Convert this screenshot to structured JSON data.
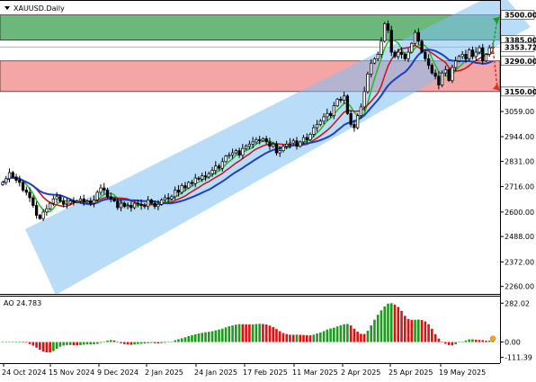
{
  "chart_data": {
    "type": "candlestick",
    "symbol_label": "XAUUSD.Daily",
    "x_ticks": [
      "24 Oct 2024",
      "15 Nov 2024",
      "9 Dec 2024",
      "2 Jan 2025",
      "24 Jan 2025",
      "17 Feb 2025",
      "11 Mar 2025",
      "2 Apr 2025",
      "25 Apr 2025",
      "19 May 2025"
    ],
    "y_ticks": [
      3500.0,
      3385.0,
      3353.72,
      3290.0,
      3150.0,
      3059.0,
      2944.0,
      2831.0,
      2716.0,
      2600.0,
      2488.0,
      2372.0,
      2260.0
    ],
    "ylim": [
      2230,
      3560
    ],
    "current_price": 3353.72,
    "zones": [
      {
        "name": "resistance",
        "from": 3385.0,
        "to": 3500.0,
        "color": "#2e9a44"
      },
      {
        "name": "support",
        "from": 3150.0,
        "to": 3290.0,
        "color": "#f08080"
      }
    ],
    "channel": {
      "color": "#7fbff2"
    },
    "forecast_arrows": [
      {
        "direction": "up",
        "color": "#1e9b2e"
      },
      {
        "direction": "down",
        "color": "#e03020"
      }
    ],
    "ma_colors": [
      "#22bb22",
      "#cc1111",
      "#1f3fbf"
    ],
    "closes": [
      2735,
      2752,
      2780,
      2760,
      2745,
      2735,
      2700,
      2690,
      2665,
      2630,
      2585,
      2570,
      2600,
      2615,
      2640,
      2660,
      2670,
      2650,
      2635,
      2640,
      2650,
      2645,
      2650,
      2660,
      2645,
      2650,
      2640,
      2655,
      2690,
      2710,
      2700,
      2670,
      2660,
      2650,
      2620,
      2640,
      2625,
      2630,
      2620,
      2640,
      2635,
      2630,
      2625,
      2655,
      2640,
      2625,
      2635,
      2655,
      2665,
      2660,
      2670,
      2700,
      2690,
      2720,
      2710,
      2735,
      2730,
      2755,
      2750,
      2765,
      2760,
      2775,
      2790,
      2810,
      2800,
      2830,
      2855,
      2860,
      2870,
      2880,
      2860,
      2890,
      2900,
      2910,
      2920,
      2930,
      2925,
      2935,
      2920,
      2900,
      2910,
      2870,
      2880,
      2900,
      2910,
      2915,
      2925,
      2900,
      2920,
      2940,
      2930,
      2955,
      2985,
      3000,
      3015,
      3035,
      3050,
      3040,
      3085,
      3115,
      3110,
      3130,
      3050,
      3000,
      2985,
      3040,
      3080,
      3150,
      3230,
      3280,
      3300,
      3320,
      3380,
      3460,
      3430,
      3330,
      3310,
      3330,
      3320,
      3300,
      3330,
      3370,
      3420,
      3380,
      3330,
      3300,
      3270,
      3235,
      3220,
      3180,
      3235,
      3250,
      3200,
      3260,
      3290,
      3310,
      3320,
      3300,
      3340,
      3310,
      3330,
      3350,
      3290,
      3320,
      3350,
      3353.72
    ],
    "ao": {
      "label": "AO",
      "value": 24.783,
      "y_ticks": [
        282.021,
        0.0,
        -111.386
      ],
      "ylim": [
        -140,
        310
      ],
      "up_color": "#1f9a1f",
      "down_color": "#dd1111"
    }
  }
}
